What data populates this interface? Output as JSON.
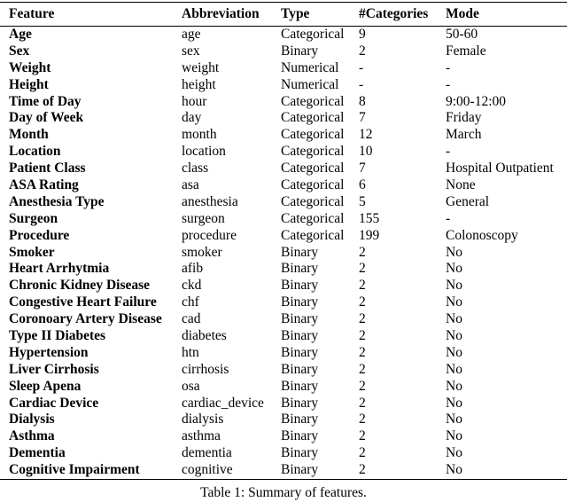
{
  "table": {
    "headers": [
      "Feature",
      "Abbreviation",
      "Type",
      "#Categories",
      "Mode"
    ],
    "rows": [
      {
        "feature": "Age",
        "abbreviation": "age",
        "type": "Categorical",
        "categories": "9",
        "mode": "50-60"
      },
      {
        "feature": "Sex",
        "abbreviation": "sex",
        "type": "Binary",
        "categories": "2",
        "mode": "Female"
      },
      {
        "feature": "Weight",
        "abbreviation": "weight",
        "type": "Numerical",
        "categories": "-",
        "mode": "-"
      },
      {
        "feature": "Height",
        "abbreviation": "height",
        "type": "Numerical",
        "categories": "-",
        "mode": "-"
      },
      {
        "feature": "Time of Day",
        "abbreviation": "hour",
        "type": "Categorical",
        "categories": "8",
        "mode": "9:00-12:00"
      },
      {
        "feature": "Day of Week",
        "abbreviation": "day",
        "type": "Categorical",
        "categories": "7",
        "mode": "Friday"
      },
      {
        "feature": "Month",
        "abbreviation": "month",
        "type": "Categorical",
        "categories": "12",
        "mode": "March"
      },
      {
        "feature": "Location",
        "abbreviation": "location",
        "type": "Categorical",
        "categories": "10",
        "mode": "-"
      },
      {
        "feature": "Patient Class",
        "abbreviation": "class",
        "type": "Categorical",
        "categories": "7",
        "mode": "Hospital Outpatient"
      },
      {
        "feature": "ASA Rating",
        "abbreviation": "asa",
        "type": "Categorical",
        "categories": "6",
        "mode": "None"
      },
      {
        "feature": "Anesthesia Type",
        "abbreviation": "anesthesia",
        "type": "Categorical",
        "categories": "5",
        "mode": "General"
      },
      {
        "feature": "Surgeon",
        "abbreviation": "surgeon",
        "type": "Categorical",
        "categories": "155",
        "mode": "-"
      },
      {
        "feature": "Procedure",
        "abbreviation": "procedure",
        "type": "Categorical",
        "categories": "199",
        "mode": "Colonoscopy"
      },
      {
        "feature": "Smoker",
        "abbreviation": "smoker",
        "type": "Binary",
        "categories": "2",
        "mode": "No"
      },
      {
        "feature": "Heart Arrhytmia",
        "abbreviation": "afib",
        "type": "Binary",
        "categories": "2",
        "mode": "No"
      },
      {
        "feature": "Chronic Kidney Disease",
        "abbreviation": "ckd",
        "type": "Binary",
        "categories": "2",
        "mode": "No"
      },
      {
        "feature": "Congestive Heart Failure",
        "abbreviation": "chf",
        "type": "Binary",
        "categories": "2",
        "mode": "No"
      },
      {
        "feature": "Coronoary Artery Disease",
        "abbreviation": "cad",
        "type": "Binary",
        "categories": "2",
        "mode": "No"
      },
      {
        "feature": "Type II Diabetes",
        "abbreviation": "diabetes",
        "type": "Binary",
        "categories": "2",
        "mode": "No"
      },
      {
        "feature": "Hypertension",
        "abbreviation": "htn",
        "type": "Binary",
        "categories": "2",
        "mode": "No"
      },
      {
        "feature": "Liver Cirrhosis",
        "abbreviation": "cirrhosis",
        "type": "Binary",
        "categories": "2",
        "mode": "No"
      },
      {
        "feature": "Sleep Apena",
        "abbreviation": "osa",
        "type": "Binary",
        "categories": "2",
        "mode": "No"
      },
      {
        "feature": "Cardiac Device",
        "abbreviation": "cardiac_device",
        "type": "Binary",
        "categories": "2",
        "mode": "No"
      },
      {
        "feature": "Dialysis",
        "abbreviation": "dialysis",
        "type": "Binary",
        "categories": "2",
        "mode": "No"
      },
      {
        "feature": "Asthma",
        "abbreviation": "asthma",
        "type": "Binary",
        "categories": "2",
        "mode": "No"
      },
      {
        "feature": "Dementia",
        "abbreviation": "dementia",
        "type": "Binary",
        "categories": "2",
        "mode": "No"
      },
      {
        "feature": "Cognitive Impairment",
        "abbreviation": "cognitive",
        "type": "Binary",
        "categories": "2",
        "mode": "No"
      }
    ]
  },
  "caption": "Table 1: Summary of features.",
  "colors": {
    "text": "#000000",
    "rule": "#000000",
    "background": "#ffffff"
  }
}
